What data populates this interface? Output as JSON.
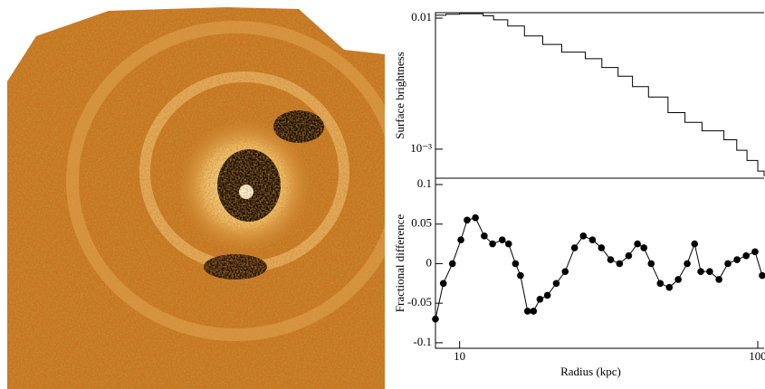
{
  "chart_data": [
    {
      "type": "line",
      "step": true,
      "ylabel": "Surface brightness",
      "xscale": "log",
      "yscale": "log",
      "color": "#000000",
      "xlim": [
        8.3,
        105
      ],
      "ylim": [
        0.0006,
        0.011
      ],
      "yticks": [
        0.01,
        {
          "value": 0.001,
          "label": "10⁻³"
        }
      ],
      "x": [
        8.3,
        9,
        10,
        11,
        12,
        13,
        14.5,
        16.5,
        19,
        22,
        26.4,
        30,
        34,
        38,
        43,
        50,
        57,
        65,
        77,
        85,
        92,
        100,
        105
      ],
      "values": [
        0.0105,
        0.0107,
        0.0108,
        0.0108,
        0.0104,
        0.0097,
        0.0087,
        0.0073,
        0.0063,
        0.0055,
        0.0049,
        0.0042,
        0.0036,
        0.003,
        0.0025,
        0.0019,
        0.0016,
        0.00138,
        0.00118,
        0.00098,
        0.00082,
        0.00068,
        0.00062
      ]
    },
    {
      "type": "line",
      "markers": true,
      "xlabel": "Radius (kpc)",
      "ylabel": "Fractional difference",
      "xscale": "log",
      "color": "#000000",
      "xlim": [
        8.3,
        105
      ],
      "ylim": [
        -0.107,
        0.108
      ],
      "xticks": [
        10,
        100
      ],
      "yticks": [
        0.1,
        0.05,
        0,
        -0.05,
        -0.1
      ],
      "x": [
        8.3,
        8.82,
        9.46,
        10.1,
        10.6,
        11.3,
        12.1,
        12.9,
        13.9,
        14.6,
        15.4,
        16.0,
        16.9,
        17.7,
        18.6,
        19.7,
        21.1,
        22.6,
        24.3,
        26.0,
        27.9,
        29.9,
        32.1,
        34.4,
        36.9,
        39.5,
        41.5,
        43.9,
        47.1,
        50.5,
        54.1,
        58.0,
        61.4,
        64.4,
        69.0,
        74.1,
        79.4,
        85.2,
        91.4,
        97.9,
        103.5
      ],
      "values": [
        -0.07,
        -0.025,
        0.0,
        0.03,
        0.055,
        0.058,
        0.035,
        0.025,
        0.03,
        0.025,
        0.0,
        -0.015,
        -0.06,
        -0.06,
        -0.045,
        -0.04,
        -0.025,
        -0.01,
        0.02,
        0.035,
        0.03,
        0.02,
        0.005,
        0.0,
        0.01,
        0.025,
        0.02,
        0.0,
        -0.025,
        -0.03,
        -0.02,
        0.0,
        0.025,
        -0.01,
        -0.01,
        -0.02,
        0.0,
        0.005,
        0.01,
        0.015,
        -0.015
      ]
    }
  ]
}
